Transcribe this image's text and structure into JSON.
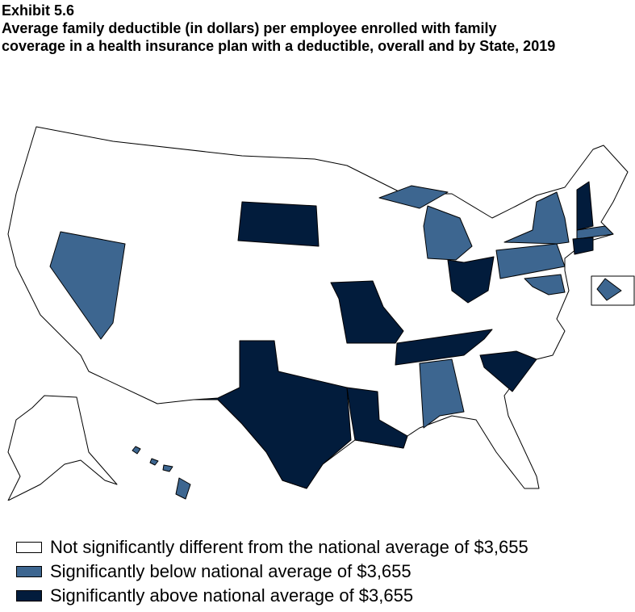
{
  "header": {
    "exhibit": "Exhibit 5.6",
    "title": "Average family deductible (in dollars) per employee enrolled with family coverage in a health insurance plan with a deductible, overall and by State, 2019"
  },
  "legend": [
    {
      "label": "Not significantly different from the national average of $3,655",
      "color": "#ffffff"
    },
    {
      "label": "Significantly below national average of $3,655",
      "color": "#3d6690"
    },
    {
      "label": "Significantly above national average of $3,655",
      "color": "#021c3c"
    }
  ]
}
